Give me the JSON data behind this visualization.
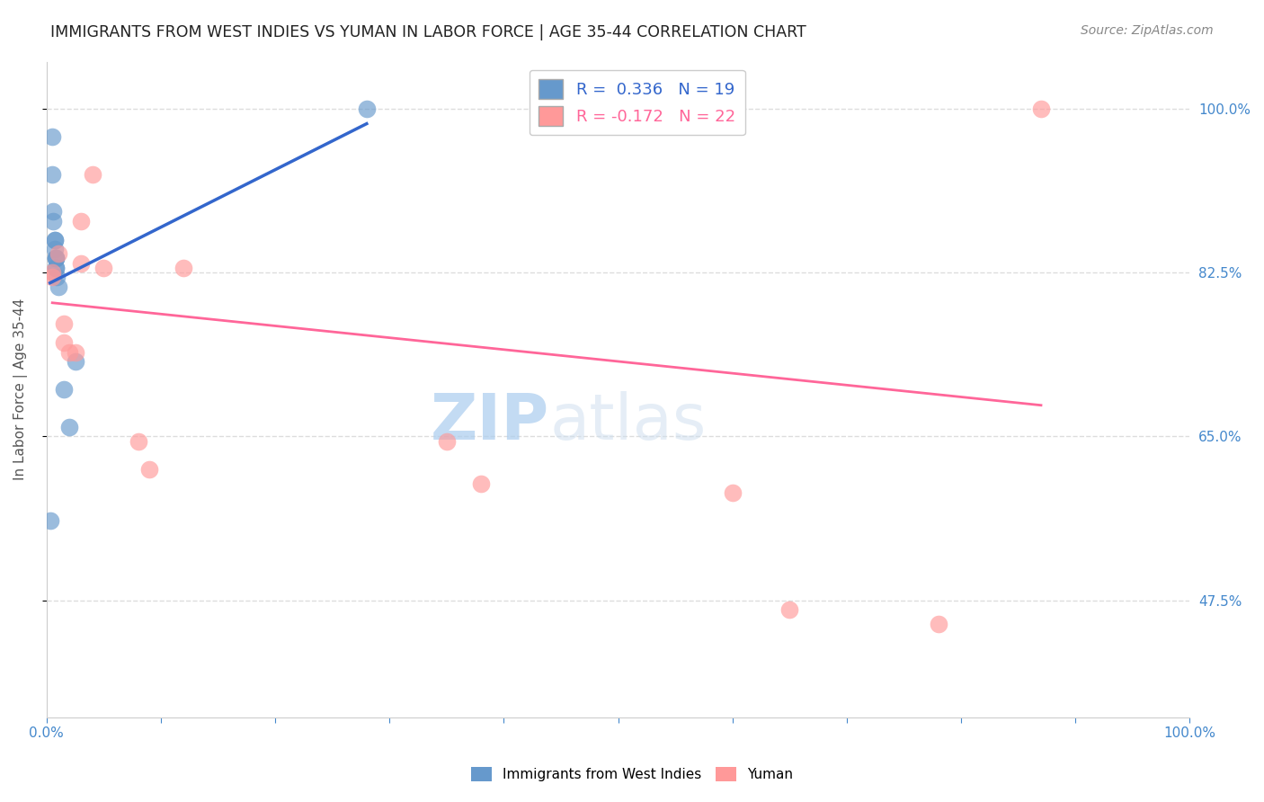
{
  "title": "IMMIGRANTS FROM WEST INDIES VS YUMAN IN LABOR FORCE | AGE 35-44 CORRELATION CHART",
  "source": "Source: ZipAtlas.com",
  "ylabel": "In Labor Force | Age 35-44",
  "y_ticks_right": [
    "100.0%",
    "82.5%",
    "65.0%",
    "47.5%"
  ],
  "y_tick_values": [
    1.0,
    0.825,
    0.65,
    0.475
  ],
  "xlim": [
    0.0,
    1.0
  ],
  "ylim": [
    0.35,
    1.05
  ],
  "blue_R": 0.336,
  "blue_N": 19,
  "pink_R": -0.172,
  "pink_N": 22,
  "blue_color": "#6699CC",
  "pink_color": "#FF9999",
  "blue_line_color": "#3366CC",
  "pink_line_color": "#FF6699",
  "watermark_zip": "ZIP",
  "watermark_atlas": "atlas",
  "blue_x": [
    0.003,
    0.005,
    0.005,
    0.006,
    0.006,
    0.007,
    0.007,
    0.007,
    0.008,
    0.008,
    0.008,
    0.008,
    0.008,
    0.009,
    0.01,
    0.015,
    0.02,
    0.025,
    0.28
  ],
  "blue_y": [
    0.56,
    0.97,
    0.93,
    0.89,
    0.88,
    0.86,
    0.86,
    0.85,
    0.84,
    0.84,
    0.84,
    0.83,
    0.83,
    0.82,
    0.81,
    0.7,
    0.66,
    0.73,
    1.0
  ],
  "pink_x": [
    0.005,
    0.005,
    0.01,
    0.015,
    0.015,
    0.02,
    0.025,
    0.03,
    0.03,
    0.04,
    0.05,
    0.08,
    0.09,
    0.12,
    0.35,
    0.38,
    0.45,
    0.5,
    0.6,
    0.65,
    0.78,
    0.87
  ],
  "pink_y": [
    0.825,
    0.82,
    0.845,
    0.77,
    0.75,
    0.74,
    0.74,
    0.835,
    0.88,
    0.93,
    0.83,
    0.645,
    0.615,
    0.83,
    0.645,
    0.6,
    1.0,
    1.0,
    0.59,
    0.465,
    0.45,
    1.0
  ],
  "background_color": "#FFFFFF",
  "grid_color": "#DDDDDD"
}
